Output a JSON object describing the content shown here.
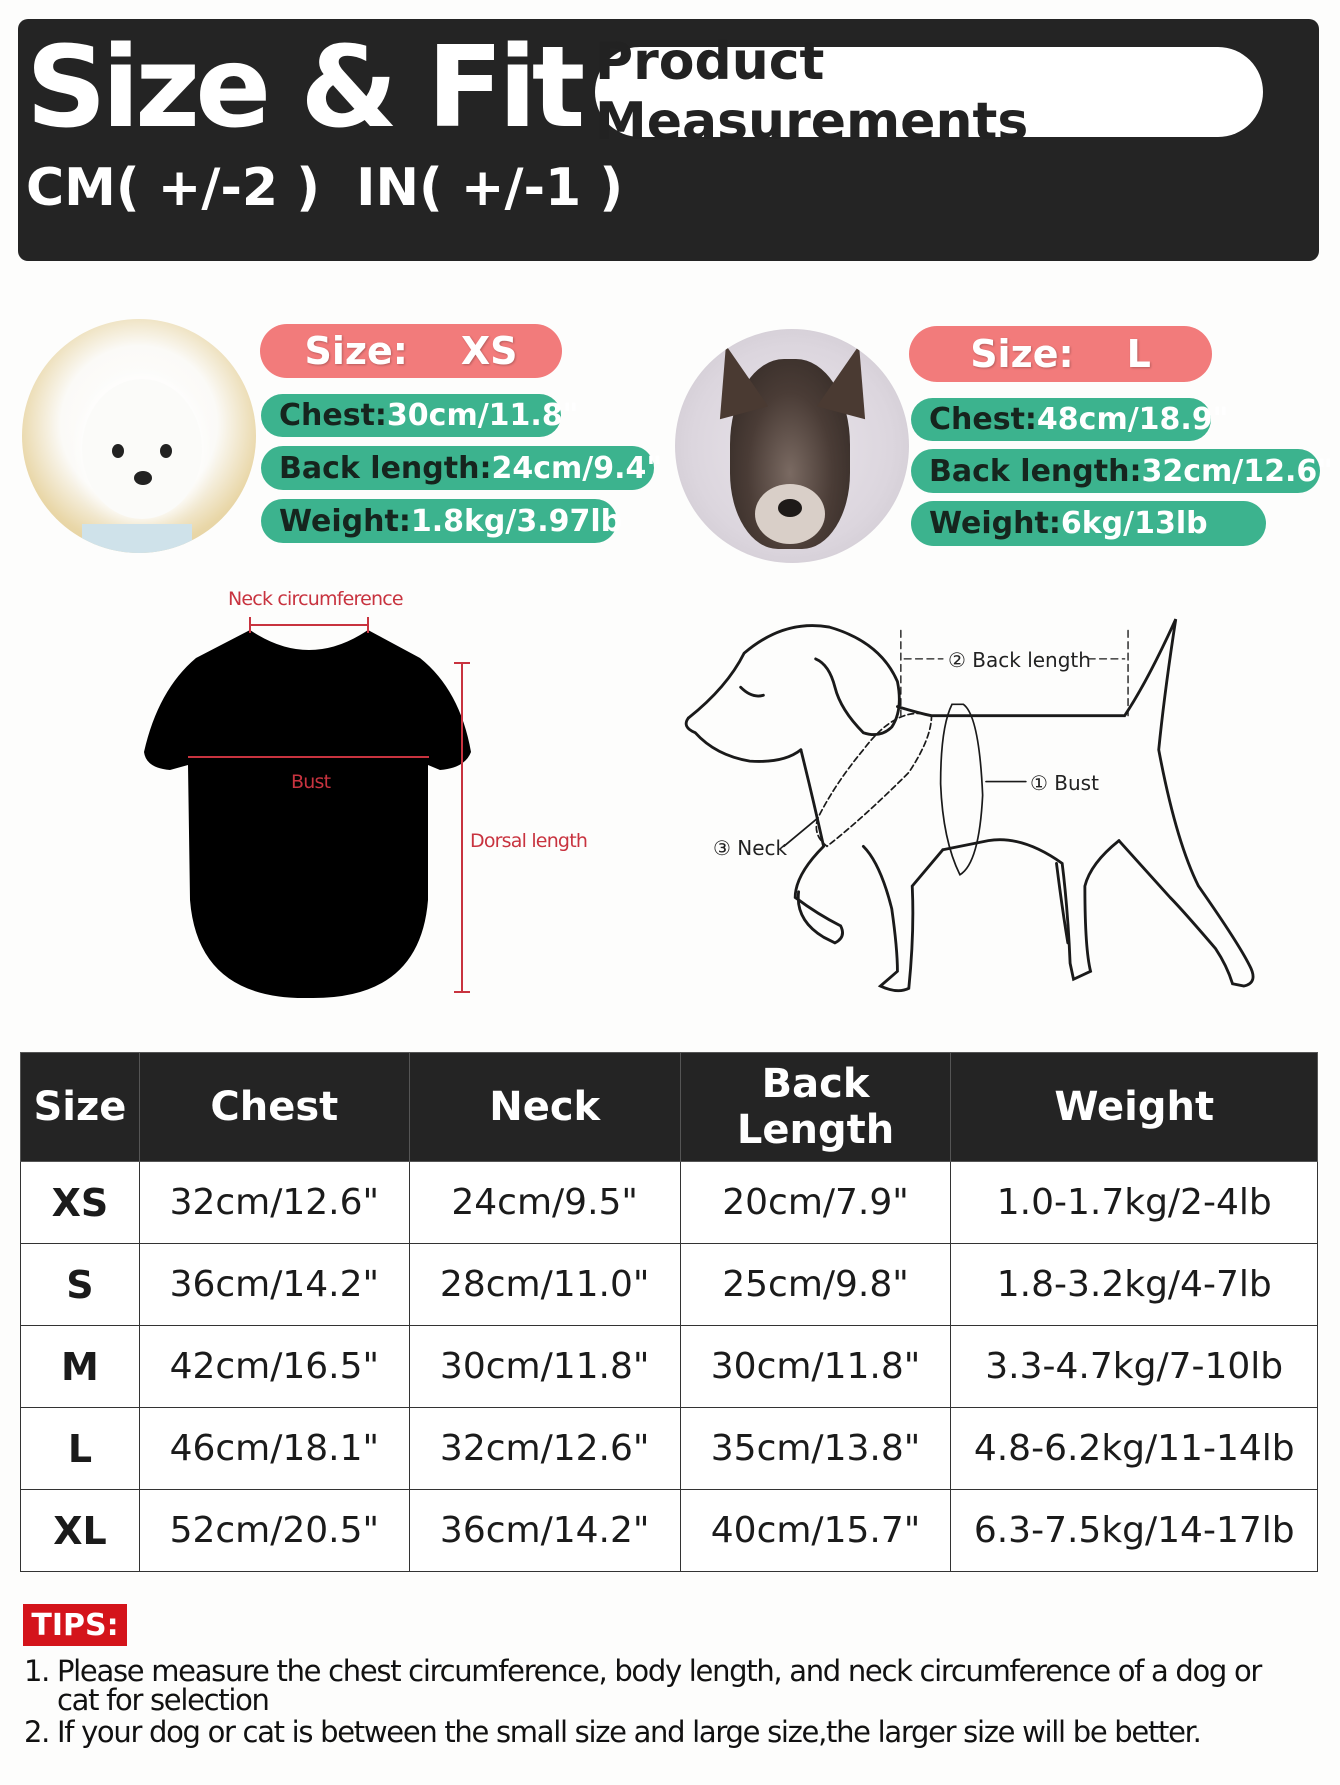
{
  "header": {
    "title": "Size & Fit",
    "tolerance": "CM( +/-2 )  IN( +/-1 )",
    "badge": "Product Measurements"
  },
  "colors": {
    "header_bg": "#242424",
    "size_pill": "#f27b7b",
    "spec_pill": "#3cb38e",
    "tips_badge": "#d4141b"
  },
  "examples": [
    {
      "photo": "white-bichon-dog-photo",
      "size_label": "Size:    XS",
      "chest_label": "Chest:",
      "chest": "30cm/11.8\"",
      "back_label": "Back length:",
      "back": "24cm/9.4\"",
      "weight_label": "Weight:",
      "weight": "1.8kg/3.97lb"
    },
    {
      "photo": "schnauzer-dog-photo",
      "size_label": "Size:    L",
      "chest_label": "Chest:",
      "chest": "48cm/18.9\"",
      "back_label": "Back length:",
      "back": "32cm/12.6\"",
      "weight_label": "Weight:",
      "weight": "6kg/13lb"
    }
  ],
  "shirt_diagram": {
    "neck": "Neck circumference",
    "bust": "Bust",
    "dorsal": "Dorsal length"
  },
  "dog_diagram": {
    "back": "② Back length",
    "bust": "① Bust",
    "neck": "③ Neck"
  },
  "table": {
    "headers": [
      "Size",
      "Chest",
      "Neck",
      "Back Length",
      "Weight"
    ],
    "rows": [
      [
        "XS",
        "32cm/12.6\"",
        "24cm/9.5\"",
        "20cm/7.9\"",
        "1.0-1.7kg/2-4lb"
      ],
      [
        "S",
        "36cm/14.2\"",
        "28cm/11.0\"",
        "25cm/9.8\"",
        "1.8-3.2kg/4-7lb"
      ],
      [
        "M",
        "42cm/16.5\"",
        "30cm/11.8\"",
        "30cm/11.8\"",
        "3.3-4.7kg/7-10lb"
      ],
      [
        "L",
        "46cm/18.1\"",
        "32cm/12.6\"",
        "35cm/13.8\"",
        "4.8-6.2kg/11-14lb"
      ],
      [
        "XL",
        "52cm/20.5\"",
        "36cm/14.2\"",
        "40cm/15.7\"",
        "6.3-7.5kg/14-17lb"
      ]
    ]
  },
  "tips": {
    "label": "TIPS:",
    "items": [
      "1.  Please measure the chest circumference, body length, and neck circumference of a dog or",
      "cat for selection",
      "2.  If your dog or cat is between the small size and large size,the larger size will be better."
    ]
  }
}
